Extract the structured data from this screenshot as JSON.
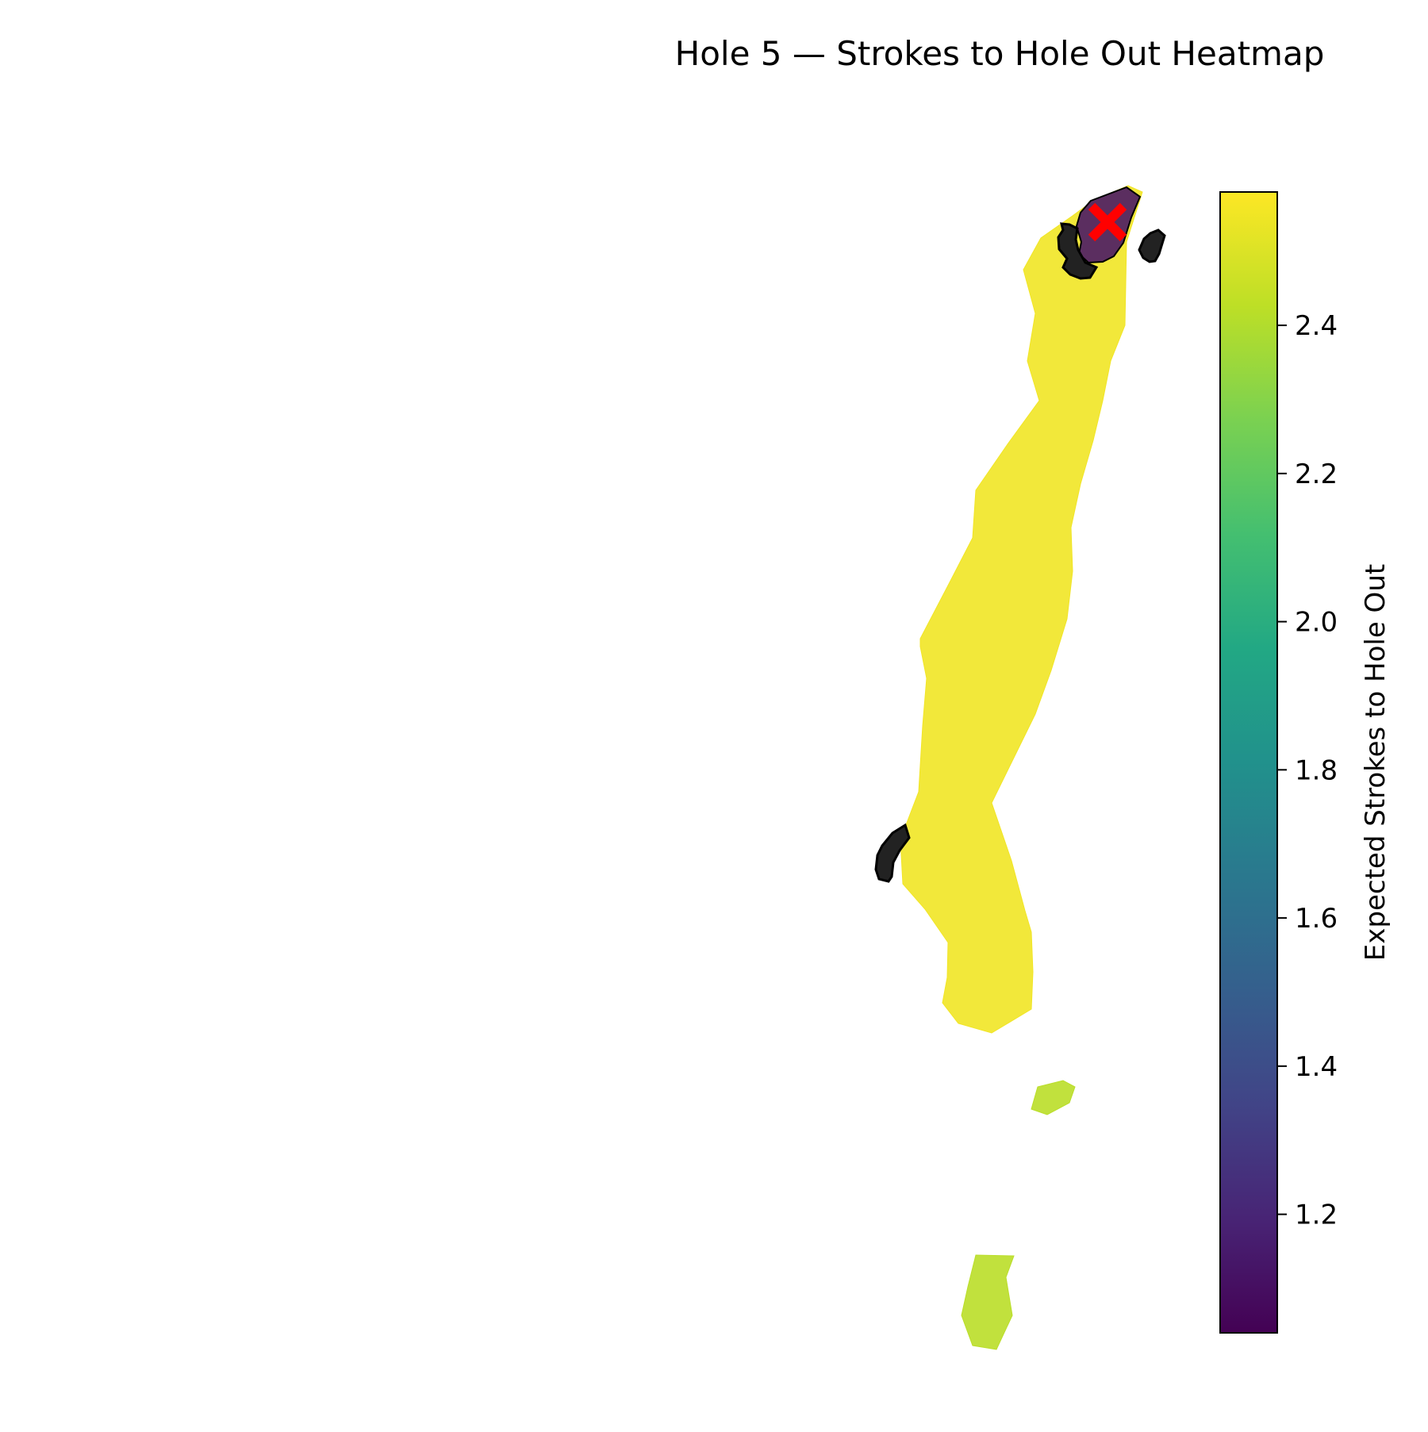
{
  "chart_data": {
    "type": "heatmap",
    "title": "Hole 5 — Strokes to Hole Out Heatmap",
    "xlabel": "",
    "ylabel": "",
    "axes_visible": false,
    "grid": false,
    "colormap": "viridis",
    "colorbar": {
      "label": "Expected Strokes to Hole Out",
      "range": [
        1.04,
        2.58
      ],
      "ticks": [
        1.2,
        1.4,
        1.6,
        1.8,
        2.0,
        2.2,
        2.4
      ],
      "tick_labels": [
        "1.2",
        "1.4",
        "1.6",
        "1.8",
        "2.0",
        "2.2",
        "2.4"
      ],
      "placement": "right"
    },
    "regions": [
      {
        "name": "fairway",
        "value": 2.55
      },
      {
        "name": "green",
        "value": 1.12
      },
      {
        "name": "tee-box-front",
        "value": 2.42
      },
      {
        "name": "tee-box-back",
        "value": 2.42
      },
      {
        "name": "bunker-left-fairway",
        "type": "hazard"
      },
      {
        "name": "bunker-green-left",
        "type": "hazard"
      },
      {
        "name": "bunker-green-right",
        "type": "hazard"
      }
    ],
    "marker": {
      "name": "pin",
      "symbol": "x",
      "color": "#ff0000"
    },
    "colors": {
      "hazard": "#222222",
      "marker": "#ff0000",
      "outline": "#000000"
    }
  }
}
